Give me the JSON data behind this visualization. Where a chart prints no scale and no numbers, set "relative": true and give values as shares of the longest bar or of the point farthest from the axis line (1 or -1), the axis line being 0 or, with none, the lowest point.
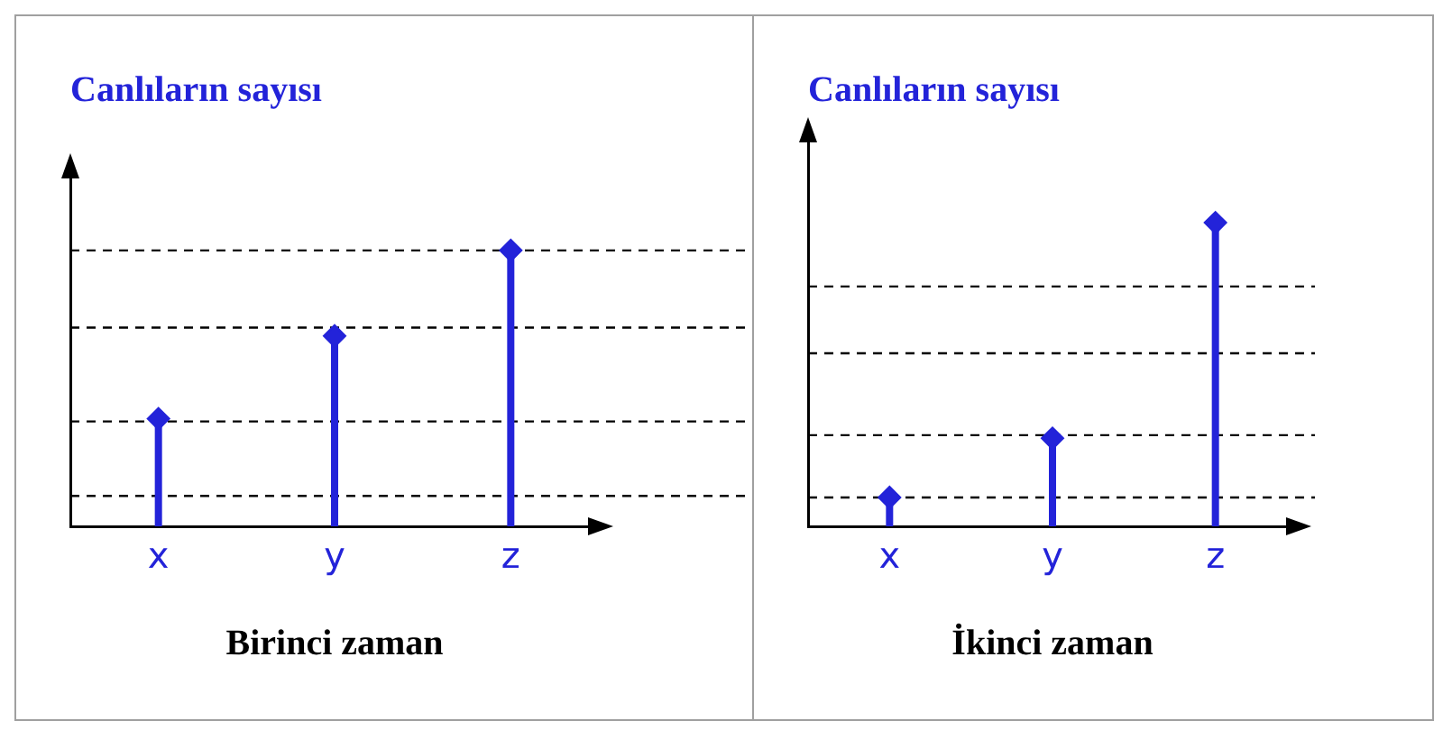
{
  "chart_data": [
    {
      "type": "lollipop",
      "title": "Canlıların sayısı",
      "xlabel": "Birinci zaman",
      "categories": [
        "x",
        "y",
        "z"
      ],
      "relative": true,
      "marker": "diamond",
      "series": [
        {
          "color": "#2323d9",
          "values": [
            0.39,
            0.69,
            1
          ]
        }
      ],
      "ref_lines": [
        {
          "axis": "y",
          "value": 0.11,
          "line_style": "dashed",
          "color": "#000000"
        },
        {
          "axis": "y",
          "value": 0.38,
          "line_style": "dashed",
          "color": "#000000"
        },
        {
          "axis": "y",
          "value": 0.72,
          "line_style": "dashed",
          "color": "#000000"
        },
        {
          "axis": "y",
          "value": 1,
          "line_style": "dashed",
          "color": "#000000"
        }
      ]
    },
    {
      "type": "lollipop",
      "title": "Canlıların sayısı",
      "xlabel": "İkinci zaman",
      "categories": [
        "x",
        "y",
        "z"
      ],
      "relative": true,
      "marker": "diamond",
      "series": [
        {
          "color": "#2323d9",
          "values": [
            0.095,
            0.29,
            1
          ]
        }
      ],
      "ref_lines": [
        {
          "axis": "y",
          "value": 0.095,
          "line_style": "dashed",
          "color": "#000000"
        },
        {
          "axis": "y",
          "value": 0.3,
          "line_style": "dashed",
          "color": "#000000"
        },
        {
          "axis": "y",
          "value": 0.57,
          "line_style": "dashed",
          "color": "#000000"
        },
        {
          "axis": "y",
          "value": 0.79,
          "line_style": "dashed",
          "color": "#000000"
        }
      ]
    }
  ]
}
